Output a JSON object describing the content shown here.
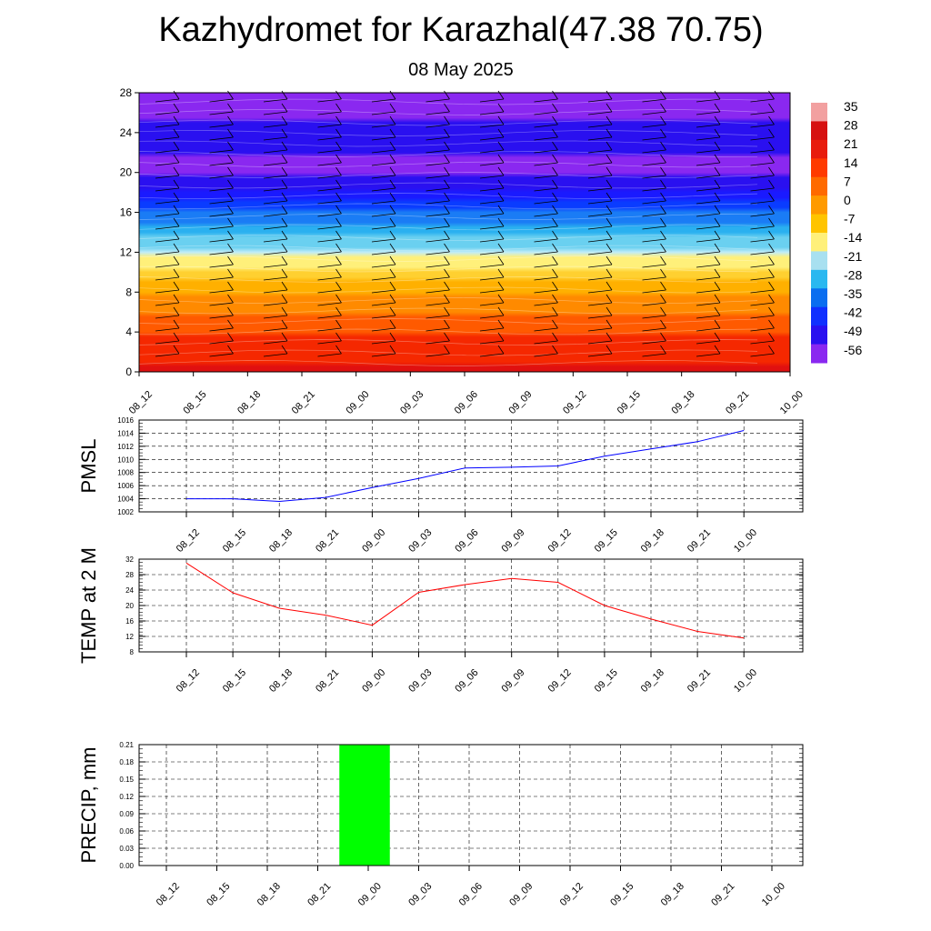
{
  "title": "Kazhydromet for Karazhal(47.38 70.75)",
  "subtitle": "08 May 2025",
  "x_ticks": [
    "08_12",
    "08_15",
    "08_18",
    "08_21",
    "09_00",
    "09_03",
    "09_06",
    "09_09",
    "09_12",
    "09_15",
    "09_18",
    "09_21",
    "10_00"
  ],
  "chart_data": [
    {
      "type": "heatmap",
      "name": "cross-section",
      "y_ticks": [
        0,
        4,
        8,
        12,
        16,
        20,
        24,
        28
      ],
      "ylim": [
        0,
        28
      ],
      "colorbar_labels": [
        "35",
        "28",
        "21",
        "14",
        "7",
        "0",
        "-7",
        "-14",
        "-21",
        "-28",
        "-35",
        "-42",
        "-49",
        "-56"
      ],
      "colorbar_colors": [
        "#f2a0a0",
        "#d61010",
        "#e81c0c",
        "#ff3a00",
        "#ff6a00",
        "#ff9a00",
        "#ffc400",
        "#fff07a",
        "#a8e0f0",
        "#2ab8f0",
        "#0a6ef0",
        "#1030ff",
        "#2a10f0",
        "#8a28f0"
      ],
      "temperature_profile": [
        {
          "level": 0,
          "value": 30
        },
        {
          "level": 4,
          "value": 20
        },
        {
          "level": 8,
          "value": 6
        },
        {
          "level": 12,
          "value": -12
        },
        {
          "level": 16,
          "value": -35
        },
        {
          "level": 20,
          "value": -58
        },
        {
          "level": 24,
          "value": -54
        },
        {
          "level": 28,
          "value": -60
        }
      ]
    },
    {
      "type": "line",
      "ylabel": "PMSL",
      "ylim": [
        1002,
        1016
      ],
      "y_ticks": [
        1002,
        1004,
        1006,
        1008,
        1010,
        1012,
        1014,
        1016
      ],
      "color": "#0000ff",
      "values": [
        1004,
        1004,
        1003.6,
        1004.2,
        1005.7,
        1007.1,
        1008.7,
        1008.8,
        1009,
        1010.5,
        1011.6,
        1012.7,
        1014.4
      ]
    },
    {
      "type": "line",
      "ylabel": "TEMP at 2 M",
      "ylim": [
        8,
        32
      ],
      "y_ticks": [
        8,
        12,
        16,
        20,
        24,
        28,
        32
      ],
      "color": "#ff0000",
      "values": [
        31,
        23.3,
        19.3,
        17.5,
        14.9,
        23.4,
        25.4,
        27,
        26,
        20,
        16.5,
        13.3,
        11.6
      ]
    },
    {
      "type": "bar",
      "ylabel": "PRECIP, mm",
      "ylim": [
        0,
        0.21
      ],
      "y_ticks": [
        "0.00",
        "0.03",
        "0.06",
        "0.09",
        "0.12",
        "0.15",
        "0.18",
        "0.21"
      ],
      "color": "#00ff00",
      "values": [
        0,
        0,
        0,
        0,
        0.21,
        0,
        0,
        0,
        0,
        0,
        0,
        0,
        0
      ]
    }
  ]
}
